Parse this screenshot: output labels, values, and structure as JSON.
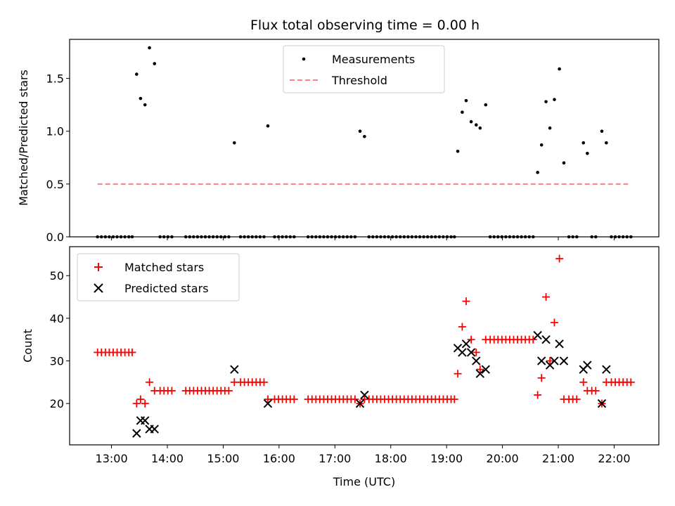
{
  "chart_data": [
    {
      "type": "scatter",
      "title": "Flux total observing time = 0.00 h",
      "xlabel": "",
      "ylabel": "Matched/Predicted stars",
      "xlim": [
        12.25,
        22.8
      ],
      "ylim": [
        0.0,
        1.87
      ],
      "yticks": [
        0.0,
        0.5,
        1.0,
        1.5
      ],
      "ytick_labels": [
        "0.0",
        "0.5",
        "1.0",
        "1.5"
      ],
      "xticks": [
        13,
        14,
        15,
        16,
        17,
        18,
        19,
        20,
        21,
        22
      ],
      "legend_position": "top-center",
      "series": [
        {
          "name": "Measurements",
          "kind": "points",
          "color": "#000000",
          "x": [
            12.75,
            12.82,
            12.89,
            12.96,
            13.03,
            13.1,
            13.17,
            13.24,
            13.31,
            13.37,
            13.45,
            13.52,
            13.6,
            13.68,
            13.77,
            13.87,
            13.94,
            14.01,
            14.08,
            14.33,
            14.4,
            14.47,
            14.54,
            14.61,
            14.68,
            14.75,
            14.82,
            14.89,
            14.96,
            15.03,
            15.1,
            15.2,
            15.31,
            15.38,
            15.45,
            15.52,
            15.59,
            15.66,
            15.73,
            15.8,
            15.92,
            15.99,
            16.06,
            16.13,
            16.2,
            16.27,
            16.52,
            16.59,
            16.66,
            16.73,
            16.8,
            16.87,
            16.94,
            17.01,
            17.08,
            17.15,
            17.22,
            17.29,
            17.36,
            17.45,
            17.53,
            17.61,
            17.68,
            17.75,
            17.82,
            17.89,
            17.96,
            18.03,
            18.1,
            18.17,
            18.24,
            18.31,
            18.38,
            18.45,
            18.52,
            18.59,
            18.66,
            18.73,
            18.8,
            18.87,
            18.94,
            19.01,
            19.08,
            19.14,
            19.2,
            19.28,
            19.35,
            19.44,
            19.53,
            19.6,
            19.7,
            19.78,
            19.85,
            19.92,
            19.99,
            20.06,
            20.13,
            20.2,
            20.27,
            20.34,
            20.41,
            20.48,
            20.55,
            20.63,
            20.7,
            20.78,
            20.85,
            20.93,
            21.02,
            21.1,
            21.19,
            21.26,
            21.33,
            21.45,
            21.52,
            21.6,
            21.67,
            21.78,
            21.86,
            21.95,
            22.02,
            22.09,
            22.16,
            22.23,
            22.3
          ],
          "y": [
            0,
            0,
            0,
            0,
            0,
            0,
            0,
            0,
            0,
            0,
            1.54,
            1.31,
            1.25,
            1.79,
            1.64,
            0,
            0,
            0,
            0,
            0,
            0,
            0,
            0,
            0,
            0,
            0,
            0,
            0,
            0,
            0,
            0,
            0.89,
            0,
            0,
            0,
            0,
            0,
            0,
            0,
            1.05,
            0,
            0,
            0,
            0,
            0,
            0,
            0,
            0,
            0,
            0,
            0,
            0,
            0,
            0,
            0,
            0,
            0,
            0,
            0,
            1.0,
            0.95,
            0,
            0,
            0,
            0,
            0,
            0,
            0,
            0,
            0,
            0,
            0,
            0,
            0,
            0,
            0,
            0,
            0,
            0,
            0,
            0,
            0,
            0,
            0,
            0.81,
            1.18,
            1.29,
            1.09,
            1.06,
            1.03,
            1.25,
            0,
            0,
            0,
            0,
            0,
            0,
            0,
            0,
            0,
            0,
            0,
            0,
            0.61,
            0.87,
            1.28,
            1.03,
            1.3,
            1.59,
            0.7,
            0,
            0,
            0,
            0.89,
            0.79,
            0,
            0,
            1.0,
            0.89,
            0,
            0,
            0,
            0,
            0,
            0
          ]
        },
        {
          "name": "Threshold",
          "kind": "line",
          "color": "#ff8080",
          "dash": "dashed",
          "x": [
            12.75,
            22.25
          ],
          "y": [
            0.5,
            0.5
          ]
        }
      ]
    },
    {
      "type": "scatter",
      "title": "",
      "xlabel": "Time (UTC)",
      "ylabel": "Count",
      "xlim": [
        12.25,
        22.8
      ],
      "ylim": [
        10.3,
        56.8
      ],
      "yticks": [
        20,
        30,
        40,
        50
      ],
      "ytick_labels": [
        "20",
        "30",
        "40",
        "50"
      ],
      "xticks": [
        13,
        14,
        15,
        16,
        17,
        18,
        19,
        20,
        21,
        22
      ],
      "xtick_labels": [
        "13:00",
        "14:00",
        "15:00",
        "16:00",
        "17:00",
        "18:00",
        "19:00",
        "20:00",
        "21:00",
        "22:00"
      ],
      "legend_position": "top-left",
      "series": [
        {
          "name": "Matched stars",
          "marker": "plus",
          "color": "#ff0000",
          "x": [
            12.75,
            12.82,
            12.89,
            12.96,
            13.03,
            13.1,
            13.17,
            13.24,
            13.31,
            13.37,
            13.45,
            13.52,
            13.6,
            13.68,
            13.77,
            13.87,
            13.94,
            14.01,
            14.08,
            14.33,
            14.4,
            14.47,
            14.54,
            14.61,
            14.68,
            14.75,
            14.82,
            14.89,
            14.96,
            15.03,
            15.1,
            15.2,
            15.31,
            15.38,
            15.45,
            15.52,
            15.59,
            15.66,
            15.73,
            15.8,
            15.92,
            15.99,
            16.06,
            16.13,
            16.2,
            16.27,
            16.52,
            16.59,
            16.66,
            16.73,
            16.8,
            16.87,
            16.94,
            17.01,
            17.08,
            17.15,
            17.22,
            17.29,
            17.36,
            17.45,
            17.53,
            17.61,
            17.68,
            17.75,
            17.82,
            17.89,
            17.96,
            18.03,
            18.1,
            18.17,
            18.24,
            18.31,
            18.38,
            18.45,
            18.52,
            18.59,
            18.66,
            18.73,
            18.8,
            18.87,
            18.94,
            19.01,
            19.08,
            19.14,
            19.2,
            19.28,
            19.35,
            19.44,
            19.53,
            19.6,
            19.7,
            19.78,
            19.85,
            19.92,
            19.99,
            20.06,
            20.13,
            20.2,
            20.27,
            20.34,
            20.41,
            20.48,
            20.55,
            20.63,
            20.7,
            20.78,
            20.85,
            20.93,
            21.02,
            21.1,
            21.19,
            21.26,
            21.33,
            21.45,
            21.52,
            21.6,
            21.67,
            21.78,
            21.86,
            21.95,
            22.02,
            22.09,
            22.16,
            22.23,
            22.3
          ],
          "y": [
            32,
            32,
            32,
            32,
            32,
            32,
            32,
            32,
            32,
            32,
            20,
            21,
            20,
            25,
            23,
            23,
            23,
            23,
            23,
            23,
            23,
            23,
            23,
            23,
            23,
            23,
            23,
            23,
            23,
            23,
            23,
            25,
            25,
            25,
            25,
            25,
            25,
            25,
            25,
            21,
            21,
            21,
            21,
            21,
            21,
            21,
            21,
            21,
            21,
            21,
            21,
            21,
            21,
            21,
            21,
            21,
            21,
            21,
            21,
            20,
            21,
            21,
            21,
            21,
            21,
            21,
            21,
            21,
            21,
            21,
            21,
            21,
            21,
            21,
            21,
            21,
            21,
            21,
            21,
            21,
            21,
            21,
            21,
            21,
            27,
            38,
            44,
            35,
            32,
            28,
            35,
            35,
            35,
            35,
            35,
            35,
            35,
            35,
            35,
            35,
            35,
            35,
            35,
            22,
            26,
            45,
            30,
            39,
            54,
            21,
            21,
            21,
            21,
            25,
            23,
            23,
            23,
            20,
            25,
            25,
            25,
            25,
            25,
            25,
            25
          ]
        },
        {
          "name": "Predicted stars",
          "marker": "x",
          "color": "#000000",
          "x": [
            13.45,
            13.52,
            13.6,
            13.68,
            13.77,
            15.2,
            15.8,
            17.45,
            17.53,
            19.2,
            19.28,
            19.35,
            19.44,
            19.53,
            19.6,
            19.7,
            20.63,
            20.7,
            20.78,
            20.85,
            20.93,
            21.02,
            21.1,
            21.45,
            21.52,
            21.78,
            21.86
          ],
          "y": [
            13,
            16,
            16,
            14,
            14,
            28,
            20,
            20,
            22,
            33,
            32,
            34,
            32,
            30,
            27,
            28,
            36,
            30,
            35,
            29,
            30,
            34,
            30,
            28,
            29,
            20,
            28
          ]
        }
      ]
    }
  ]
}
